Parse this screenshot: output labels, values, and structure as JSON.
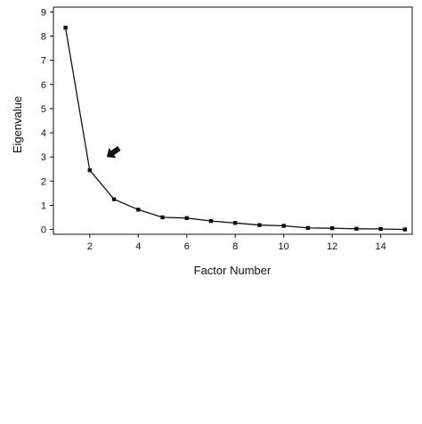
{
  "chart_data": {
    "type": "line",
    "title": "",
    "xlabel": "Factor Number",
    "ylabel": "Eigenvalue",
    "xlim": [
      0.5,
      15.3
    ],
    "ylim": [
      -0.2,
      9.2
    ],
    "x_ticks": [
      2,
      4,
      6,
      8,
      10,
      12,
      14
    ],
    "y_ticks": [
      0,
      1,
      2,
      3,
      4,
      5,
      6,
      7,
      8,
      9
    ],
    "grid": false,
    "legend": "none",
    "series": [
      {
        "x": [
          1,
          2,
          3,
          4,
          5,
          6,
          7,
          8,
          9,
          10,
          11,
          12,
          13,
          14,
          15
        ],
        "values": [
          8.35,
          2.45,
          1.25,
          0.82,
          0.5,
          0.47,
          0.35,
          0.27,
          0.18,
          0.15,
          0.06,
          0.05,
          0.03,
          0.02,
          0.0
        ]
      }
    ],
    "annotations": [
      {
        "type": "arrow",
        "x": 2.7,
        "y": 3.0,
        "points_to": "factor 2 (elbow)"
      }
    ],
    "colors": {
      "line": "#111111",
      "axis": "#111111",
      "background": "#ffffff"
    }
  }
}
